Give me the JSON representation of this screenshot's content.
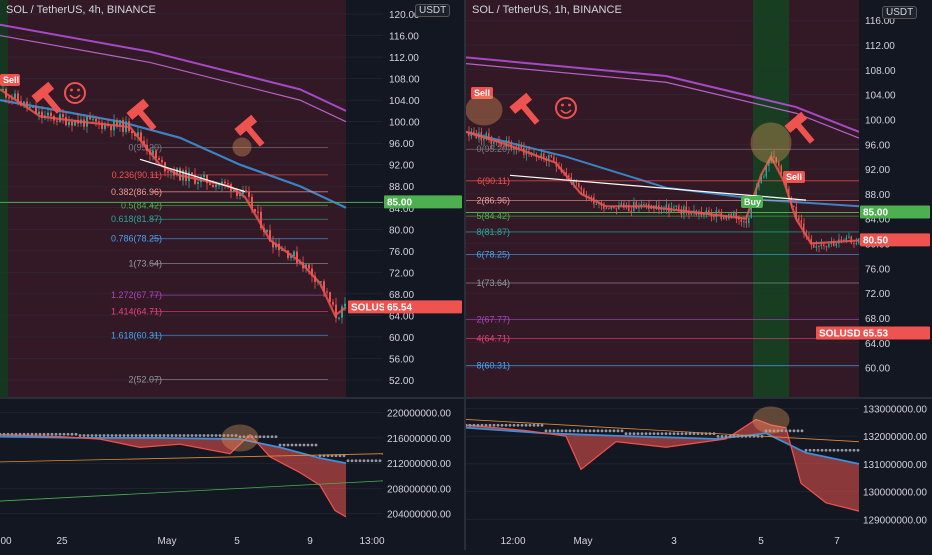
{
  "colors": {
    "bg": "#131722",
    "bull": "#26a69a",
    "bear": "#ef5350",
    "grid": "#2a2e39",
    "fibline": "#787b86",
    "ma_blue": "#3d8fd8",
    "ma_purple": "#b34fd8",
    "equilibrium": "#4caf50",
    "osc_grey": "#9598a1"
  },
  "left_chart": {
    "title": "SOL / TetherUS, 4h, BINANCE",
    "currency": "USDT",
    "price_axis": [
      "120.00",
      "116.00",
      "112.00",
      "108.00",
      "104.00",
      "100.00",
      "96.00",
      "92.00",
      "88.00",
      "84.00",
      "80.00",
      "76.00",
      "72.00",
      "68.00",
      "64.00",
      "60.00",
      "56.00",
      "52.00"
    ],
    "price_tags": [
      {
        "label": "85.00",
        "kind": "green"
      },
      {
        "label": "SOLUSDT",
        "kind": "red"
      },
      {
        "label": "65.54",
        "kind": "red"
      }
    ],
    "fib_levels": [
      {
        "label": "0(95.20)",
        "color": "#787b86"
      },
      {
        "label": "0.236(90.11)",
        "color": "#ef5350"
      },
      {
        "label": "0.382(86.96)",
        "color": "#ef9a9a"
      },
      {
        "label": "0.5(84.42)",
        "color": "#4caf50"
      },
      {
        "label": "0.618(81.87)",
        "color": "#26a69a"
      },
      {
        "label": "0.786(78.25)",
        "color": "#42a5f5"
      },
      {
        "label": "1(73.64)",
        "color": "#9598a1"
      },
      {
        "label": "1.272(67.77)",
        "color": "#ab47bc"
      },
      {
        "label": "1.414(64.71)",
        "color": "#ec407a"
      },
      {
        "label": "1.618(60.31)",
        "color": "#42a5f5"
      },
      {
        "label": "2(52.07)",
        "color": "#9598a1"
      }
    ],
    "osc_axis": [
      "220000000.00",
      "216000000.00",
      "212000000.00",
      "208000000.00",
      "204000000.00"
    ],
    "time_axis": [
      "00",
      "25",
      "May",
      "5",
      "9",
      "13:00"
    ],
    "sell_label": "Sell"
  },
  "right_chart": {
    "title": "SOL / TetherUS, 1h, BINANCE",
    "currency": "USDT",
    "price_axis": [
      "116.00",
      "112.00",
      "108.00",
      "104.00",
      "100.00",
      "96.00",
      "92.00",
      "88.00",
      "84.00",
      "80.00",
      "76.00",
      "72.00",
      "68.00",
      "64.00",
      "60.00"
    ],
    "price_tags": [
      {
        "label": "85.00",
        "kind": "green"
      },
      {
        "label": "80.50",
        "kind": "red"
      },
      {
        "label": "SOLUSDT",
        "kind": "red"
      },
      {
        "label": "65.53",
        "kind": "red"
      }
    ],
    "fib_levels": [
      {
        "label": "0(95.20)",
        "color": "#787b86"
      },
      {
        "label": "6(90.11)",
        "color": "#ef5350"
      },
      {
        "label": "2(86.96)",
        "color": "#ef9a9a"
      },
      {
        "label": "5(84.42)",
        "color": "#4caf50"
      },
      {
        "label": "8(81.87)",
        "color": "#26a69a"
      },
      {
        "label": "6(78.25)",
        "color": "#42a5f5"
      },
      {
        "label": "1(73.64)",
        "color": "#9598a1"
      },
      {
        "label": "2(67.77)",
        "color": "#ab47bc"
      },
      {
        "label": "4(64.71)",
        "color": "#ec407a"
      },
      {
        "label": "8(60.31)",
        "color": "#42a5f5"
      }
    ],
    "osc_axis": [
      "133000000.00",
      "132000000.00",
      "131000000.00",
      "130000000.00",
      "129000000.00"
    ],
    "time_axis": [
      "12:00",
      "May",
      "3",
      "5",
      "7"
    ],
    "sell_label": "Sell",
    "sell_label2": "Sell",
    "buy_label": "Buy"
  },
  "chart_data": [
    {
      "type": "line",
      "title": "SOL / TetherUS, 4h, BINANCE",
      "x": [
        "00",
        "25",
        "May",
        "5",
        "9",
        "13:00"
      ],
      "series": [
        {
          "name": "SOLUSDT",
          "values": [
            106,
            98,
            95,
            86,
            72,
            65.54
          ]
        }
      ],
      "ylim": [
        50,
        122
      ],
      "ylabel": "USDT",
      "legend": "none"
    },
    {
      "type": "line",
      "title": "SOL / TetherUS, 1h, BINANCE",
      "x": [
        "12:00",
        "May",
        "3",
        "5",
        "7"
      ],
      "series": [
        {
          "name": "SOLUSDT",
          "values": [
            100,
            90,
            86,
            91,
            80.5
          ]
        }
      ],
      "ylim": [
        58,
        118
      ],
      "ylabel": "USDT",
      "legend": "none"
    }
  ]
}
